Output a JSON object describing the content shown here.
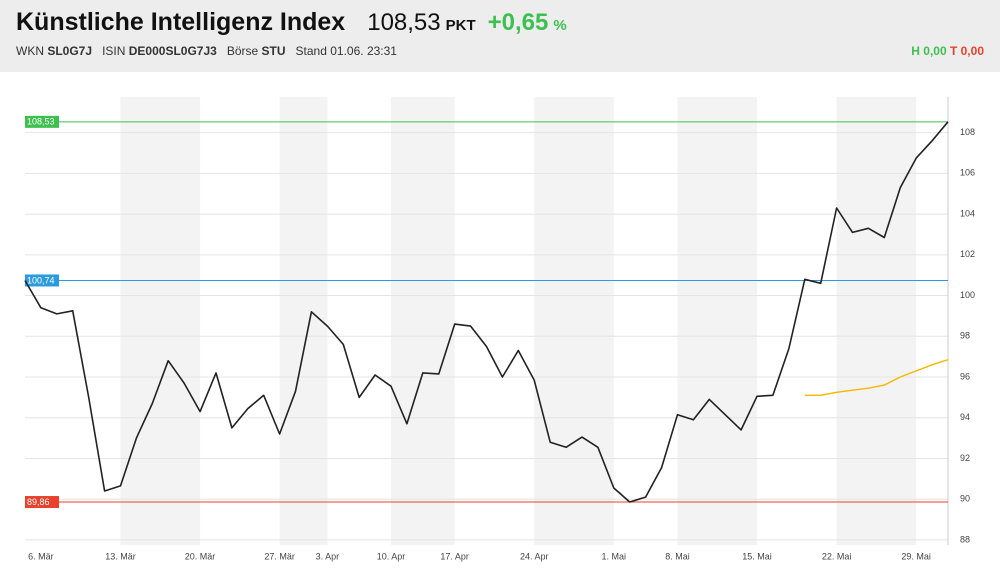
{
  "header": {
    "title": "Künstliche Intelligenz Index",
    "price": "108,53",
    "price_unit": "PKT",
    "change": "+0,65",
    "change_unit": "%",
    "info": [
      {
        "label": "WKN",
        "value": "SL0G7J"
      },
      {
        "label": "ISIN",
        "value": "DE000SL0G7J3"
      },
      {
        "label": "Börse",
        "value": "STU"
      }
    ],
    "stand": "Stand 01.06. 23:31",
    "high": "H 0,00",
    "low": "T 0,00"
  },
  "chart_data": {
    "type": "line",
    "categories": [
      null,
      "6. Mär",
      null,
      null,
      null,
      null,
      "13. Mär",
      null,
      null,
      null,
      null,
      "20. Mär",
      null,
      null,
      null,
      null,
      "27. Mär",
      null,
      null,
      "3. Apr",
      null,
      null,
      null,
      "10. Apr",
      null,
      null,
      null,
      "17. Apr",
      null,
      null,
      null,
      null,
      "24. Apr",
      null,
      null,
      null,
      null,
      "1. Mai",
      null,
      null,
      null,
      "8. Mai",
      null,
      null,
      null,
      null,
      "15. Mai",
      null,
      null,
      null,
      null,
      "22. Mai",
      null,
      null,
      null,
      null,
      "29. Mai",
      null,
      null
    ],
    "series": [
      {
        "color": "#222222",
        "values": [
          100.74,
          99.4,
          99.1,
          99.25,
          95.0,
          90.4,
          90.65,
          93.0,
          94.7,
          96.8,
          95.7,
          94.3,
          96.2,
          93.5,
          94.45,
          95.1,
          93.2,
          95.3,
          99.2,
          98.5,
          97.6,
          95.0,
          96.1,
          95.55,
          93.7,
          96.2,
          96.15,
          98.6,
          98.5,
          97.5,
          96.0,
          97.3,
          95.85,
          92.8,
          92.55,
          93.05,
          92.55,
          90.55,
          89.86,
          90.1,
          91.55,
          94.15,
          93.9,
          94.9,
          94.15,
          93.4,
          95.05,
          95.1,
          97.4,
          100.8,
          100.6,
          104.3,
          103.1,
          103.3,
          102.85,
          105.3,
          106.75,
          107.6,
          108.53
        ]
      },
      {
        "color": "#f5b800",
        "values": [
          null,
          null,
          null,
          null,
          null,
          null,
          null,
          null,
          null,
          null,
          null,
          null,
          null,
          null,
          null,
          null,
          null,
          null,
          null,
          null,
          null,
          null,
          null,
          null,
          null,
          null,
          null,
          null,
          null,
          null,
          null,
          null,
          null,
          null,
          null,
          null,
          null,
          null,
          null,
          null,
          null,
          null,
          null,
          null,
          null,
          null,
          null,
          null,
          null,
          95.1,
          95.1,
          95.25,
          95.35,
          95.45,
          95.6,
          96.0,
          96.3,
          96.6,
          96.85
        ]
      }
    ],
    "reference_lines": [
      {
        "value": 108.53,
        "label": "108,53",
        "color": "#3cc14e"
      },
      {
        "value": 100.74,
        "label": "100,74",
        "color": "#2b9be0"
      },
      {
        "value": 89.86,
        "label": "89,86",
        "color": "#e8412c"
      }
    ],
    "ylim": [
      87.75,
      109.75
    ],
    "yticks": [
      88,
      90,
      92,
      94,
      96,
      98,
      100,
      102,
      104,
      106,
      108
    ],
    "grid": true
  }
}
